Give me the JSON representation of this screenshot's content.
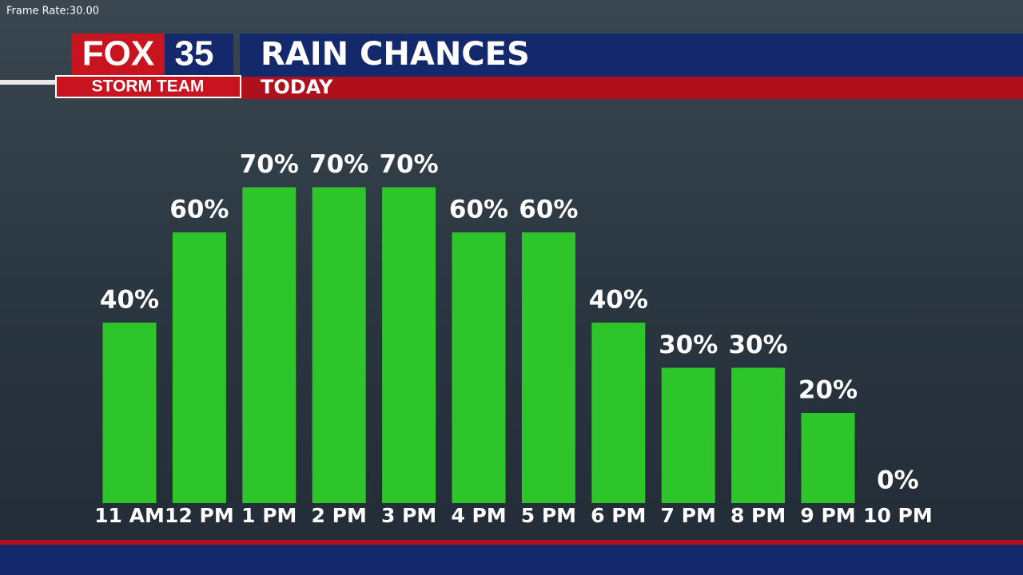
{
  "overlay": {
    "frame_rate": "Frame Rate:30.00"
  },
  "logo": {
    "brand": "FOX",
    "channel": "35",
    "team": "STORM TEAM"
  },
  "chart_data": {
    "type": "bar",
    "title": "RAIN CHANCES",
    "subtitle": "TODAY",
    "categories": [
      "11 AM",
      "12 PM",
      "1 PM",
      "2 PM",
      "3 PM",
      "4 PM",
      "5 PM",
      "6 PM",
      "7 PM",
      "8 PM",
      "9 PM",
      "10 PM"
    ],
    "values": [
      40,
      60,
      70,
      70,
      70,
      60,
      60,
      40,
      30,
      30,
      20,
      0
    ],
    "value_labels": [
      "40%",
      "60%",
      "70%",
      "70%",
      "70%",
      "60%",
      "60%",
      "40%",
      "30%",
      "30%",
      "20%",
      "0%"
    ],
    "color": "#2ec52a",
    "ylim": [
      0,
      100
    ]
  }
}
